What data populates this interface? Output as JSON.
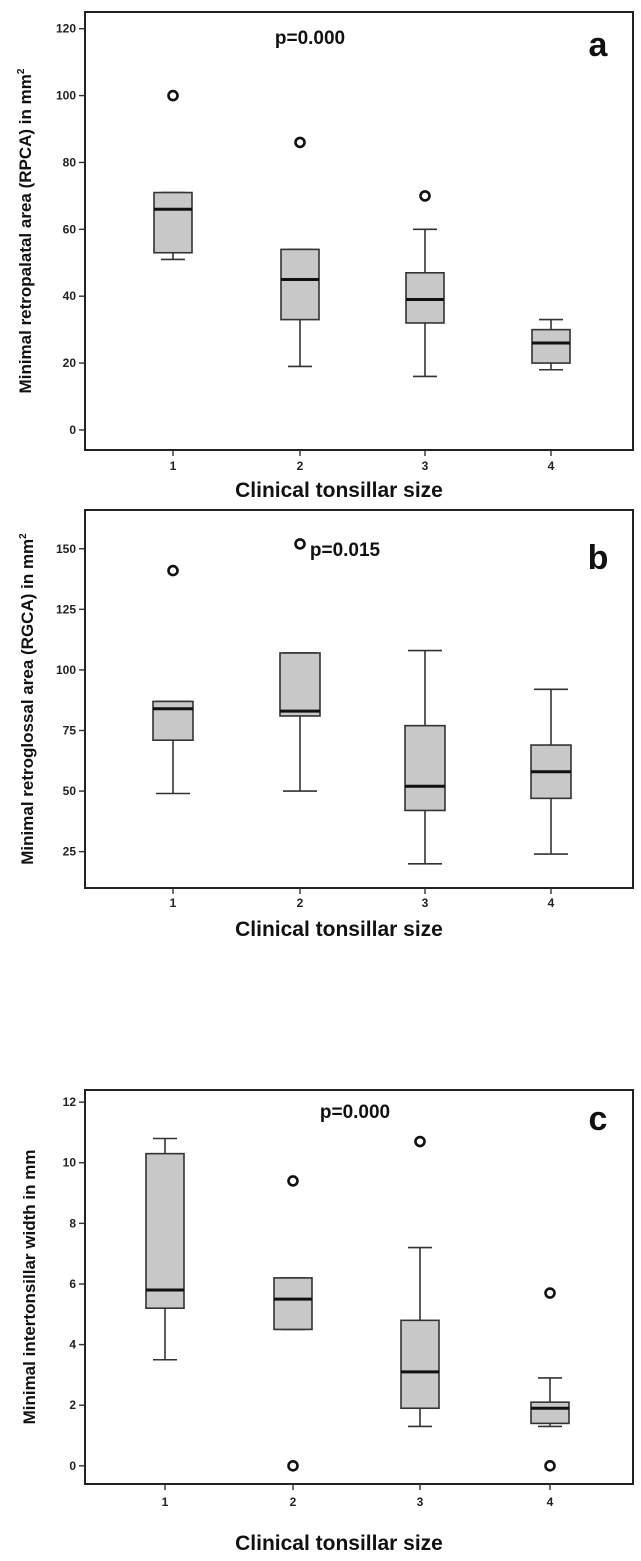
{
  "chart_data": [
    {
      "type": "boxplot",
      "panel_letter": "a",
      "annotation": "p=0.000",
      "xlabel": "Clinical tonsillar size",
      "ylabel": "Minimal retropalatal area (RPCA) in mm",
      "ylabel_sup": "2",
      "categories": [
        "1",
        "2",
        "3",
        "4"
      ],
      "yticks": [
        0,
        20,
        40,
        60,
        80,
        100,
        120
      ],
      "ylim": [
        -6,
        125
      ],
      "boxes": [
        {
          "category": "1",
          "whisker_low": 51,
          "q1": 53,
          "median": 66,
          "q3": 71,
          "whisker_high": 71,
          "outliers": [
            100
          ]
        },
        {
          "category": "2",
          "whisker_low": 19,
          "q1": 33,
          "median": 45,
          "q3": 54,
          "whisker_high": 54,
          "outliers": [
            86
          ]
        },
        {
          "category": "3",
          "whisker_low": 16,
          "q1": 32,
          "median": 39,
          "q3": 47,
          "whisker_high": 60,
          "outliers": [
            70
          ]
        },
        {
          "category": "4",
          "whisker_low": 18,
          "q1": 20,
          "median": 26,
          "q3": 30,
          "whisker_high": 33,
          "outliers": []
        }
      ]
    },
    {
      "type": "boxplot",
      "panel_letter": "b",
      "annotation": "p=0.015",
      "xlabel": "Clinical tonsillar size",
      "ylabel": "Minimal retroglossal area (RGCA) in mm",
      "ylabel_sup": "2",
      "categories": [
        "1",
        "2",
        "3",
        "4"
      ],
      "yticks": [
        25,
        50,
        75,
        100,
        125,
        150
      ],
      "ylim": [
        10,
        166
      ],
      "boxes": [
        {
          "category": "1",
          "whisker_low": 49,
          "q1": 71,
          "median": 84,
          "q3": 87,
          "whisker_high": 87,
          "outliers": [
            141
          ]
        },
        {
          "category": "2",
          "whisker_low": 50,
          "q1": 81,
          "median": 83,
          "q3": 107,
          "whisker_high": 107,
          "outliers": [
            152
          ]
        },
        {
          "category": "3",
          "whisker_low": 20,
          "q1": 42,
          "median": 52,
          "q3": 77,
          "whisker_high": 108,
          "outliers": []
        },
        {
          "category": "4",
          "whisker_low": 24,
          "q1": 47,
          "median": 58,
          "q3": 69,
          "whisker_high": 92,
          "outliers": []
        }
      ]
    },
    {
      "type": "boxplot",
      "panel_letter": "c",
      "annotation": "p=0.000",
      "xlabel": "Clinical tonsillar size",
      "ylabel": "Minimal intertonsillar width in mm",
      "ylabel_sup": "",
      "categories": [
        "1",
        "2",
        "3",
        "4"
      ],
      "yticks": [
        0,
        2,
        4,
        6,
        8,
        10,
        12
      ],
      "ylim": [
        -0.6,
        12.4
      ],
      "boxes": [
        {
          "category": "1",
          "whisker_low": 3.5,
          "q1": 5.2,
          "median": 5.8,
          "q3": 10.3,
          "whisker_high": 10.8,
          "outliers": []
        },
        {
          "category": "2",
          "whisker_low": 4.5,
          "q1": 4.5,
          "median": 5.5,
          "q3": 6.2,
          "whisker_high": 6.2,
          "outliers": [
            9.4,
            0
          ]
        },
        {
          "category": "3",
          "whisker_low": 1.3,
          "q1": 1.9,
          "median": 3.1,
          "q3": 4.8,
          "whisker_high": 7.2,
          "outliers": [
            10.7
          ]
        },
        {
          "category": "4",
          "whisker_low": 1.3,
          "q1": 1.4,
          "median": 1.9,
          "q3": 2.1,
          "whisker_high": 2.9,
          "outliers": [
            5.7,
            0
          ]
        }
      ]
    }
  ]
}
